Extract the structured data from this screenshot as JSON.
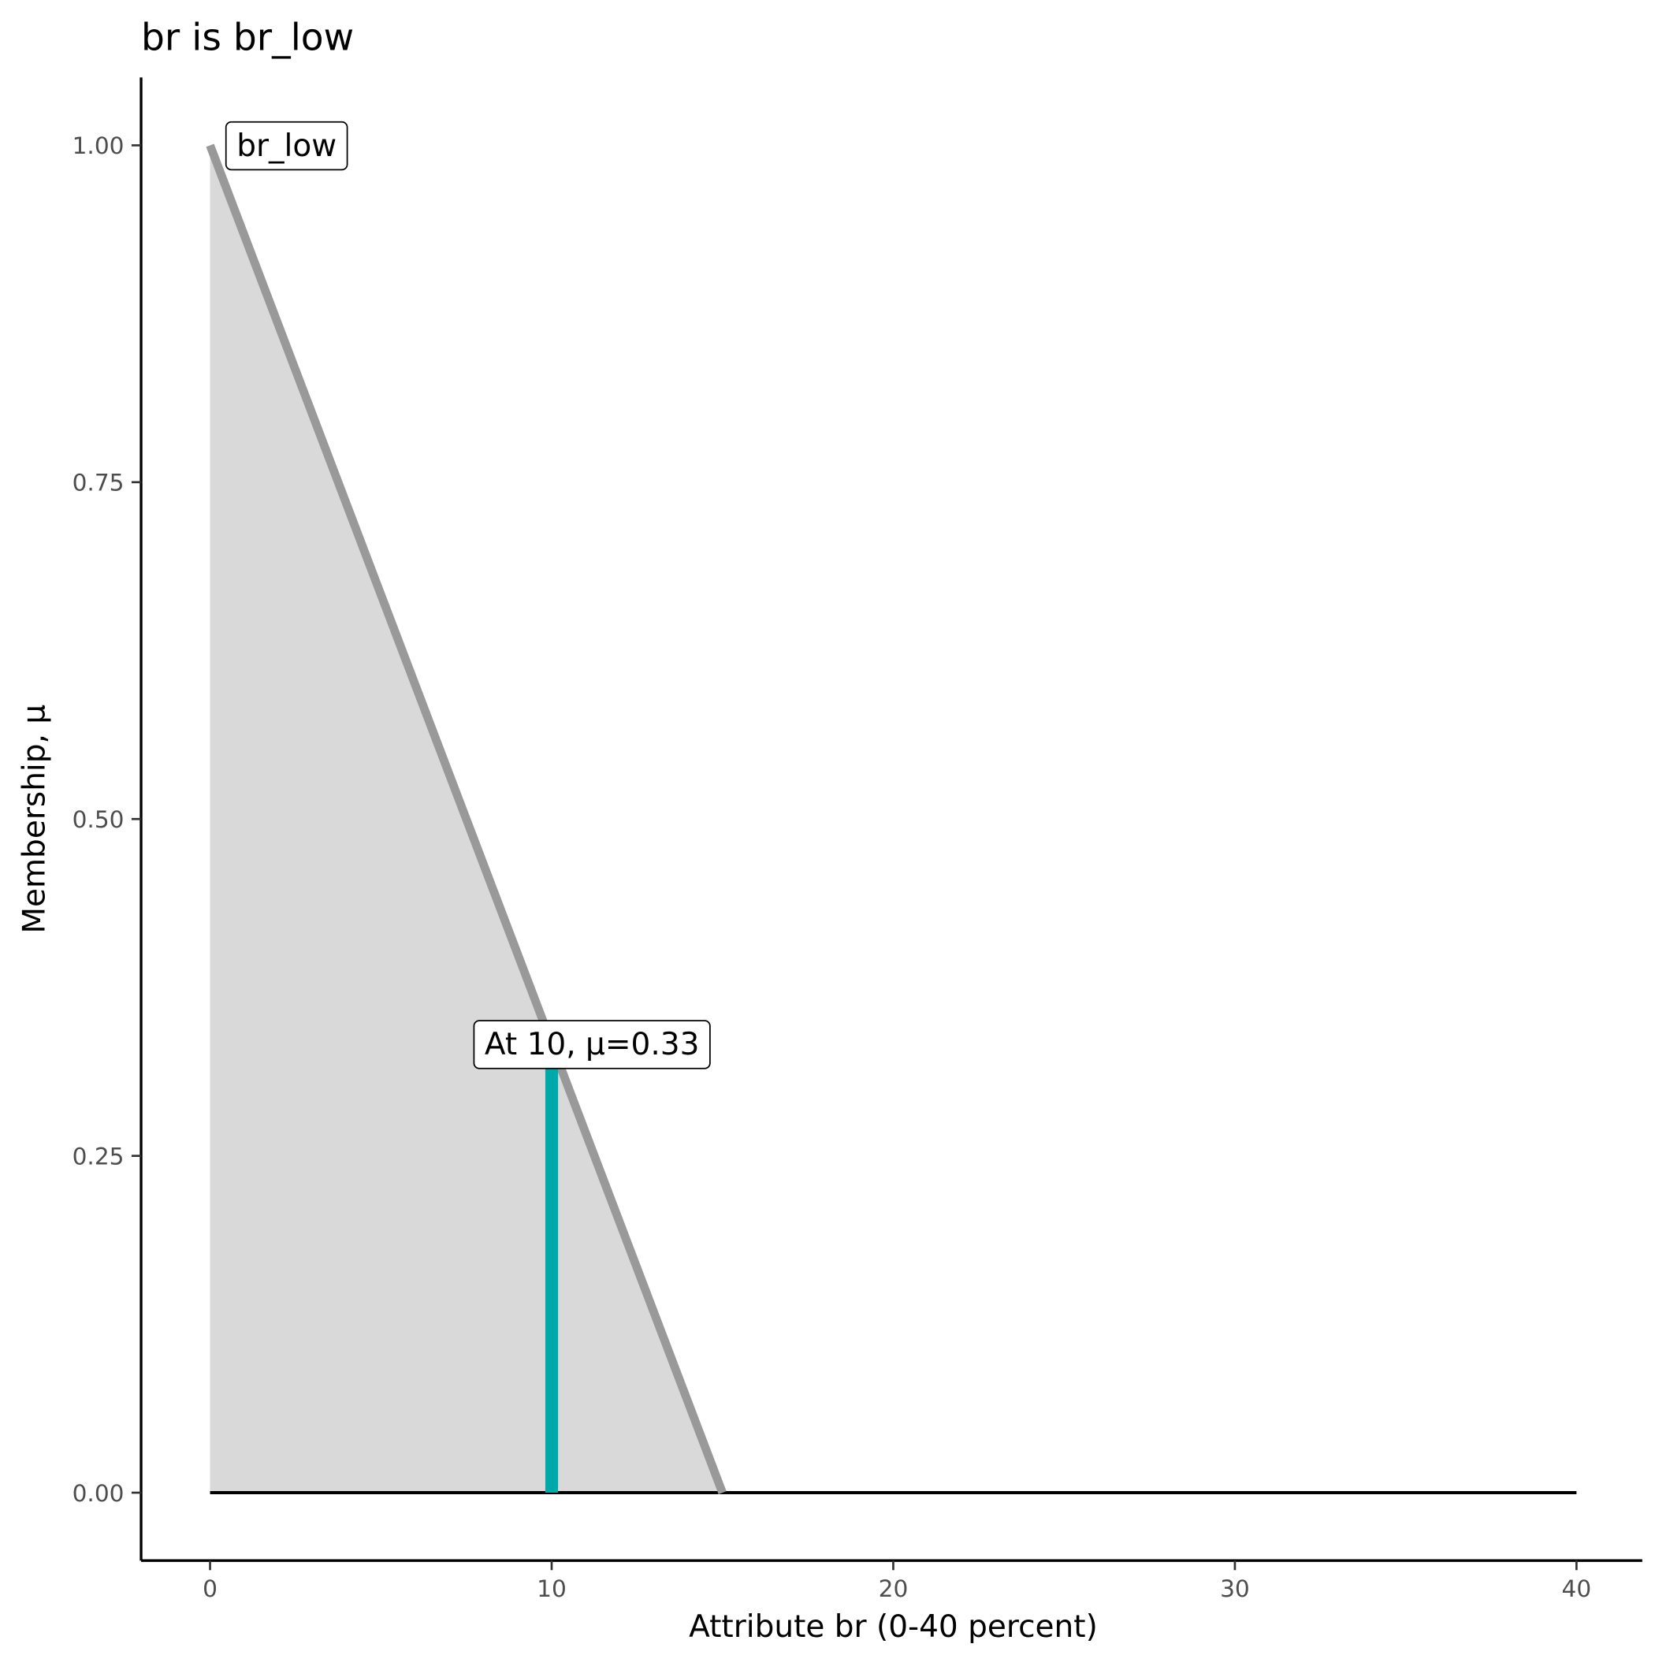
{
  "chart_data": {
    "type": "area",
    "title": "br is br_low",
    "xlabel": "Attribute br (0-40 percent)",
    "ylabel": "Membership, μ",
    "xlim": [
      -2,
      42
    ],
    "ylim": [
      -0.05,
      1.05
    ],
    "x_ticks": [
      0,
      10,
      20,
      30,
      40
    ],
    "x_tick_labels": [
      "0",
      "10",
      "20",
      "30",
      "40"
    ],
    "y_ticks": [
      0,
      0.25,
      0.5,
      0.75,
      1
    ],
    "y_tick_labels": [
      "0.00",
      "0.25",
      "0.50",
      "0.75",
      "1.00"
    ],
    "grid": false,
    "membership_function": {
      "name": "br_low",
      "x": [
        0,
        15,
        40
      ],
      "y": [
        1,
        0,
        0
      ]
    },
    "baseline": {
      "x": [
        0,
        40
      ],
      "y": [
        0,
        0
      ]
    },
    "evaluation": {
      "x": 10,
      "mu": 0.33,
      "label": "At 10, μ=0.33"
    },
    "colors": {
      "fill": "#d9d9d9",
      "line": "#999999",
      "marker": "#00a9a9",
      "axis": "#000000"
    }
  }
}
